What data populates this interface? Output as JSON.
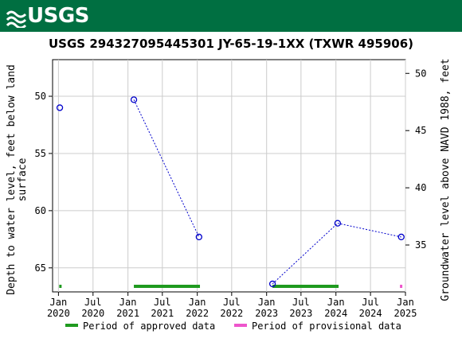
{
  "header": {
    "logo_text": "USGS",
    "banner_color": "#006f41"
  },
  "chart_data": {
    "type": "scatter",
    "title": "USGS 294327095445301 JY-65-19-1XX (TXWR 495906)",
    "ylabel_left": "Depth to water level, feet below land surface",
    "ylabel_right": "Groundwater level above NAVD 1988, feet",
    "left_axis": {
      "range": [
        67.1,
        46.8
      ],
      "inverted": true,
      "ticks": [
        50,
        55,
        60,
        65
      ]
    },
    "right_axis": {
      "range": [
        30.9,
        51.2
      ],
      "ticks": [
        35,
        40,
        45,
        50
      ]
    },
    "x_axis": {
      "range": [
        "2019-12-01",
        "2025-01-01"
      ],
      "ticks": [
        {
          "date": "2020-01-01",
          "line1": "Jan",
          "line2": "2020"
        },
        {
          "date": "2020-07-01",
          "line1": "Jul",
          "line2": "2020"
        },
        {
          "date": "2021-01-01",
          "line1": "Jan",
          "line2": "2021"
        },
        {
          "date": "2021-07-01",
          "line1": "Jul",
          "line2": "2021"
        },
        {
          "date": "2022-01-01",
          "line1": "Jan",
          "line2": "2022"
        },
        {
          "date": "2022-07-01",
          "line1": "Jul",
          "line2": "2022"
        },
        {
          "date": "2023-01-01",
          "line1": "Jan",
          "line2": "2023"
        },
        {
          "date": "2023-07-01",
          "line1": "Jul",
          "line2": "2023"
        },
        {
          "date": "2024-01-01",
          "line1": "Jan",
          "line2": "2024"
        },
        {
          "date": "2024-07-01",
          "line1": "Jul",
          "line2": "2024"
        },
        {
          "date": "2025-01-01",
          "line1": "Jan",
          "line2": "2025"
        }
      ]
    },
    "grid": true,
    "series": [
      {
        "color": "#0000cc",
        "marker": "open-circle",
        "points": [
          {
            "x": "2020-01-08",
            "y": 51.0
          },
          {
            "x": "2021-02-01",
            "y": 50.3
          },
          {
            "x": "2022-01-10",
            "y": 62.3
          },
          {
            "x": "2023-02-01",
            "y": 66.4
          },
          {
            "x": "2024-01-10",
            "y": 61.1
          },
          {
            "x": "2024-12-10",
            "y": 62.3
          }
        ],
        "connect": [
          [
            1,
            2
          ],
          [
            3,
            4
          ],
          [
            4,
            5
          ]
        ]
      }
    ],
    "periods": {
      "approved": {
        "color": "#1f9a1f",
        "ranges": [
          [
            "2020-01-05",
            "2020-01-15"
          ],
          [
            "2021-02-01",
            "2022-01-15"
          ],
          [
            "2023-02-01",
            "2024-01-15"
          ]
        ]
      },
      "provisional": {
        "color": "#ee55cc",
        "ranges": [
          [
            "2024-12-03",
            "2024-12-15"
          ]
        ]
      }
    },
    "legend": {
      "placement": "bottom",
      "items": [
        {
          "key": "approved",
          "label": "Period of approved data",
          "color": "#1f9a1f"
        },
        {
          "key": "provisional",
          "label": "Period of provisional data",
          "color": "#ee55cc"
        }
      ]
    }
  }
}
